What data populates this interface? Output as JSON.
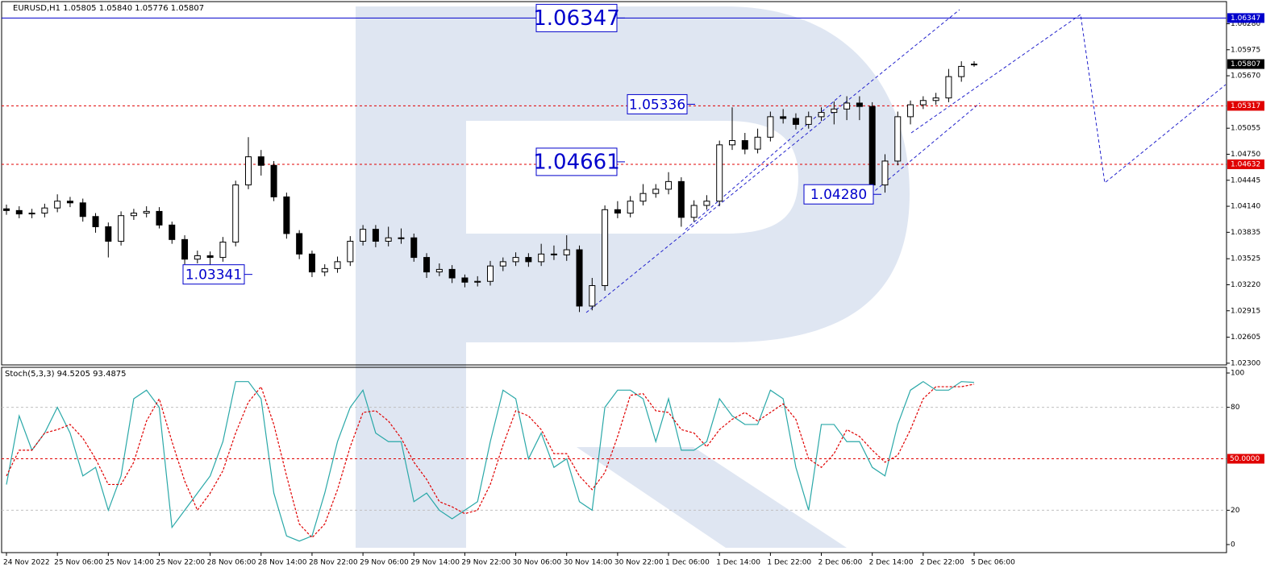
{
  "chart_data": [
    {
      "type": "candlestick",
      "legend": "EURUSD,H1  1.05805 1.05840 1.05776 1.05807",
      "categories": [
        "24 Nov 2022",
        null,
        null,
        null,
        "25 Nov 06:00",
        null,
        null,
        null,
        "25 Nov 14:00",
        null,
        null,
        null,
        "25 Nov 22:00",
        null,
        null,
        null,
        "28 Nov 06:00",
        null,
        null,
        null,
        "28 Nov 14:00",
        null,
        null,
        null,
        "28 Nov 22:00",
        null,
        null,
        null,
        "29 Nov 06:00",
        null,
        null,
        null,
        "29 Nov 14:00",
        null,
        null,
        null,
        "29 Nov 22:00",
        null,
        null,
        null,
        "30 Nov 06:00",
        null,
        null,
        null,
        "30 Nov 14:00",
        null,
        null,
        null,
        "30 Nov 22:00",
        null,
        null,
        null,
        "1 Dec 06:00",
        null,
        null,
        null,
        "1 Dec 14:00",
        null,
        null,
        null,
        "1 Dec 22:00",
        null,
        null,
        null,
        "2 Dec 06:00",
        null,
        null,
        null,
        "2 Dec 14:00",
        null,
        null,
        null,
        "2 Dec 22:00",
        null,
        null,
        null,
        "5 Dec 06:00"
      ],
      "open": [
        1.0411,
        1.0409,
        1.0405,
        1.0406,
        1.0412,
        1.042,
        1.0418,
        1.0402,
        1.039,
        1.0373,
        1.0403,
        1.0406,
        1.0408,
        1.0392,
        1.0375,
        1.0352,
        1.0356,
        1.0354,
        1.0372,
        1.0439,
        1.0472,
        1.0462,
        1.0425,
        1.0382,
        1.0358,
        1.0337,
        1.0341,
        1.0349,
        1.0373,
        1.0387,
        1.0373,
        1.0377,
        1.0377,
        1.0354,
        1.0337,
        1.034,
        1.033,
        1.0325,
        1.0326,
        1.0344,
        1.0349,
        1.0354,
        1.0349,
        1.0358,
        1.0357,
        1.0363,
        1.0297,
        1.0321,
        1.041,
        1.0406,
        1.042,
        1.0429,
        1.0434,
        1.0443,
        1.0401,
        1.0415,
        1.042,
        1.0486,
        1.0491,
        1.0481,
        1.0495,
        1.0519,
        1.0517,
        1.051,
        1.0519,
        1.0524,
        1.0528,
        1.0535,
        1.0531,
        1.0439,
        1.0467,
        1.0519,
        1.0533,
        1.0538,
        1.0541,
        1.0566,
        1.05805
      ],
      "high": [
        1.0416,
        1.0414,
        1.0411,
        1.0417,
        1.0428,
        1.0425,
        1.0423,
        1.0406,
        1.0395,
        1.0408,
        1.0411,
        1.0414,
        1.0413,
        1.0396,
        1.038,
        1.0362,
        1.0361,
        1.0378,
        1.0444,
        1.0495,
        1.048,
        1.0467,
        1.043,
        1.0386,
        1.0362,
        1.0346,
        1.0355,
        1.0379,
        1.0392,
        1.0392,
        1.039,
        1.0388,
        1.0382,
        1.0359,
        1.0347,
        1.0345,
        1.0334,
        1.0332,
        1.035,
        1.0354,
        1.036,
        1.0359,
        1.037,
        1.0368,
        1.038,
        1.0368,
        1.033,
        1.0415,
        1.042,
        1.0426,
        1.044,
        1.044,
        1.0454,
        1.0448,
        1.0421,
        1.0427,
        1.0491,
        1.053,
        1.05,
        1.0505,
        1.0525,
        1.0528,
        1.0523,
        1.0525,
        1.053,
        1.0537,
        1.0543,
        1.0543,
        1.0536,
        1.0475,
        1.0525,
        1.0538,
        1.0543,
        1.0547,
        1.0575,
        1.0584,
        1.0584
      ],
      "low": [
        1.0404,
        1.04,
        1.04,
        1.0401,
        1.0407,
        1.0413,
        1.0396,
        1.0383,
        1.0354,
        1.0368,
        1.0398,
        1.0401,
        1.0388,
        1.037,
        1.0346,
        1.0347,
        1.0334,
        1.0349,
        1.0367,
        1.0434,
        1.045,
        1.042,
        1.0376,
        1.0352,
        1.0331,
        1.0332,
        1.0336,
        1.0344,
        1.0368,
        1.0366,
        1.0367,
        1.037,
        1.0349,
        1.033,
        1.0332,
        1.0324,
        1.0319,
        1.032,
        1.0321,
        1.0338,
        1.0344,
        1.0343,
        1.0344,
        1.0351,
        1.035,
        1.029,
        1.0292,
        1.0315,
        1.04,
        1.0401,
        1.0415,
        1.0424,
        1.0428,
        1.039,
        1.0396,
        1.041,
        1.0414,
        1.048,
        1.0475,
        1.0476,
        1.049,
        1.0511,
        1.0504,
        1.0505,
        1.0514,
        1.051,
        1.0515,
        1.0515,
        1.0428,
        1.043,
        1.0462,
        1.051,
        1.0528,
        1.0533,
        1.0536,
        1.056,
        1.05776
      ],
      "close": [
        1.0409,
        1.0405,
        1.0406,
        1.0412,
        1.042,
        1.0418,
        1.0402,
        1.039,
        1.0373,
        1.0403,
        1.0406,
        1.0408,
        1.0392,
        1.0375,
        1.0352,
        1.0356,
        1.0354,
        1.0372,
        1.0439,
        1.0472,
        1.0462,
        1.0425,
        1.0382,
        1.0358,
        1.0337,
        1.0341,
        1.0349,
        1.0373,
        1.0387,
        1.0373,
        1.0377,
        1.0377,
        1.0354,
        1.0337,
        1.034,
        1.033,
        1.0325,
        1.0326,
        1.0344,
        1.0349,
        1.0354,
        1.0349,
        1.0358,
        1.0357,
        1.0363,
        1.0297,
        1.0321,
        1.041,
        1.0406,
        1.042,
        1.0429,
        1.0434,
        1.0443,
        1.0401,
        1.0415,
        1.042,
        1.0486,
        1.0491,
        1.0481,
        1.0495,
        1.0519,
        1.0517,
        1.051,
        1.0519,
        1.0524,
        1.0528,
        1.0535,
        1.0531,
        1.0439,
        1.0467,
        1.0519,
        1.0533,
        1.0538,
        1.0541,
        1.0566,
        1.0578,
        1.05807
      ],
      "ylim": [
        1.0228,
        1.0653
      ],
      "yticks": [
        {
          "value": 1.0628,
          "label": "1.06280"
        },
        {
          "value": 1.05975,
          "label": "1.05975"
        },
        {
          "value": 1.0567,
          "label": "1.05670"
        },
        {
          "value": 1.05055,
          "label": "1.05055"
        },
        {
          "value": 1.0475,
          "label": "1.04750"
        },
        {
          "value": 1.04445,
          "label": "1.04445"
        },
        {
          "value": 1.0414,
          "label": "1.04140"
        },
        {
          "value": 1.03835,
          "label": "1.03835"
        },
        {
          "value": 1.03525,
          "label": "1.03525"
        },
        {
          "value": 1.0322,
          "label": "1.03220"
        },
        {
          "value": 1.02915,
          "label": "1.02915"
        },
        {
          "value": 1.02605,
          "label": "1.02605"
        },
        {
          "value": 1.023,
          "label": "1.02300"
        }
      ],
      "last_price": {
        "value": 1.05807,
        "label": "1.05807"
      },
      "levels": [
        {
          "value": 1.06347,
          "label": "1.06347",
          "color": "#0000cc",
          "style": "solid"
        },
        {
          "value": 1.05317,
          "label": "1.05317",
          "color": "#e00000",
          "style": "dotted"
        },
        {
          "value": 1.04632,
          "label": "1.04632",
          "color": "#e00000",
          "style": "dotted"
        }
      ],
      "annotations": [
        {
          "value": 1.06347,
          "label": "1.06347"
        },
        {
          "value": 1.05336,
          "label": "1.05336"
        },
        {
          "value": 1.04661,
          "label": "1.04661"
        },
        {
          "value": 1.0428,
          "label": "1.04280"
        },
        {
          "value": 1.03341,
          "label": "1.03341"
        }
      ]
    },
    {
      "type": "line",
      "legend": "Stoch(5,3,3) 94.5205 93.4875",
      "series": [
        {
          "name": "Main",
          "color": "#2aa8a8",
          "style": "solid",
          "values": [
            35,
            75,
            55,
            65,
            80,
            65,
            40,
            45,
            20,
            40,
            85,
            90,
            80,
            10,
            20,
            30,
            40,
            60,
            95,
            95,
            85,
            30,
            5,
            2,
            5,
            30,
            60,
            80,
            90,
            65,
            60,
            60,
            25,
            30,
            20,
            15,
            20,
            25,
            60,
            90,
            85,
            50,
            65,
            45,
            50,
            25,
            20,
            80,
            90,
            90,
            85,
            60,
            85,
            55,
            55,
            60,
            85,
            75,
            70,
            70,
            90,
            85,
            45,
            20,
            70,
            70,
            60,
            60,
            45,
            40,
            70,
            90,
            95,
            90,
            90,
            95,
            94.5205
          ]
        },
        {
          "name": "Signal",
          "color": "#e00000",
          "style": "dashed",
          "values": [
            40,
            55,
            55,
            65,
            67,
            70,
            62,
            50,
            35,
            35,
            48,
            72,
            85,
            60,
            37,
            20,
            30,
            43,
            65,
            83,
            92,
            70,
            40,
            12,
            4,
            12,
            32,
            57,
            77,
            78,
            72,
            62,
            48,
            38,
            25,
            22,
            18,
            20,
            35,
            58,
            78,
            75,
            67,
            53,
            53,
            40,
            32,
            42,
            63,
            87,
            88,
            78,
            77,
            67,
            65,
            57,
            67,
            73,
            77,
            72,
            77,
            82,
            73,
            50,
            45,
            53,
            67,
            63,
            55,
            48,
            52,
            67,
            85,
            92,
            92,
            92,
            93.4875
          ]
        }
      ],
      "ylim": [
        -4.7,
        103.3
      ],
      "yticks": [
        0,
        20,
        80,
        100
      ],
      "levels": [
        {
          "value": 20,
          "color": "#c0c0c0"
        },
        {
          "value": 50,
          "label": "50.0000",
          "color": "#e00000"
        },
        {
          "value": 80,
          "color": "#c0c0c0"
        }
      ]
    }
  ]
}
